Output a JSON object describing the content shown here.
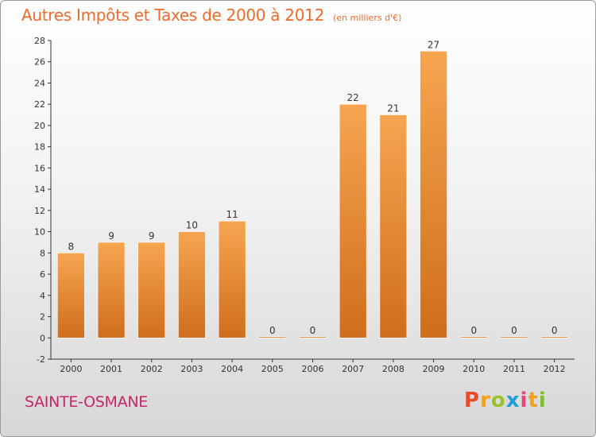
{
  "header": {
    "title": "Autres Impôts et Taxes de 2000 à 2012",
    "subtitle": "(en milliers d'€)"
  },
  "footer": {
    "commune": "SAINTE-OSMANE",
    "logo_text": "Proxiti"
  },
  "colors": {
    "accent": "#ee6b2b",
    "commune": "#c6266a",
    "bar_light": "#f7a550",
    "bar_dark": "#cf6e1c",
    "logo_letters": [
      "#e84b2c",
      "#f2a01c",
      "#9cc12b",
      "#1e9fd8",
      "#e8457a",
      "#f2a01c",
      "#7bbf2a"
    ]
  },
  "chart_data": {
    "type": "bar",
    "categories": [
      "2000",
      "2001",
      "2002",
      "2003",
      "2004",
      "2005",
      "2006",
      "2007",
      "2008",
      "2009",
      "2010",
      "2011",
      "2012"
    ],
    "values": [
      8,
      9,
      9,
      10,
      11,
      0,
      0,
      22,
      21,
      27,
      0,
      0,
      0
    ],
    "data_labels": [
      "8",
      "9",
      "9",
      "10",
      "11",
      "0",
      "0",
      "22",
      "21",
      "27",
      "0",
      "0",
      "0"
    ],
    "ylim": [
      -2,
      28
    ],
    "yticks": [
      -2,
      0,
      2,
      4,
      6,
      8,
      10,
      12,
      14,
      16,
      18,
      20,
      22,
      24,
      26,
      28
    ],
    "grid": false
  }
}
